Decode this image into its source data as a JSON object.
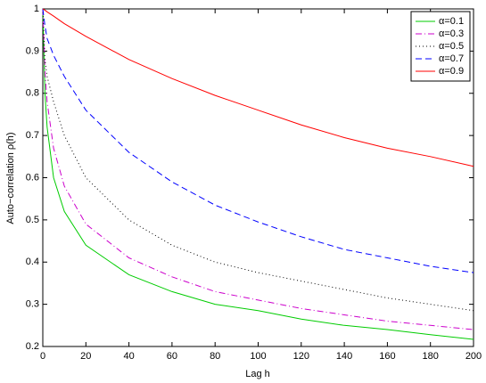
{
  "chart_data": {
    "type": "line",
    "xlabel": "Lag h",
    "ylabel": "Auto−correlation ρ(h)",
    "x": [
      0,
      1,
      2,
      5,
      10,
      20,
      40,
      60,
      80,
      100,
      120,
      140,
      160,
      180,
      200
    ],
    "series": [
      {
        "name": "α=0.1",
        "color": "#00cc00",
        "dash": "solid",
        "values": [
          1,
          0.8,
          0.72,
          0.6,
          0.52,
          0.44,
          0.37,
          0.33,
          0.3,
          0.285,
          0.265,
          0.25,
          0.24,
          0.228,
          0.217
        ]
      },
      {
        "name": "α=0.3",
        "color": "#cc00cc",
        "dash": "dashdot",
        "values": [
          1,
          0.85,
          0.78,
          0.67,
          0.58,
          0.49,
          0.41,
          0.365,
          0.33,
          0.31,
          0.29,
          0.275,
          0.26,
          0.25,
          0.24
        ]
      },
      {
        "name": "α=0.5",
        "color": "#000000",
        "dash": "dotted",
        "values": [
          1,
          0.88,
          0.84,
          0.78,
          0.7,
          0.6,
          0.5,
          0.44,
          0.4,
          0.375,
          0.355,
          0.335,
          0.315,
          0.3,
          0.285
        ]
      },
      {
        "name": "α=0.7",
        "color": "#0000ff",
        "dash": "dashed",
        "values": [
          1,
          0.96,
          0.93,
          0.89,
          0.84,
          0.76,
          0.66,
          0.59,
          0.535,
          0.495,
          0.46,
          0.43,
          0.41,
          0.39,
          0.375
        ]
      },
      {
        "name": "α=0.9",
        "color": "#ff0000",
        "dash": "solid",
        "values": [
          1,
          0.997,
          0.993,
          0.983,
          0.965,
          0.935,
          0.88,
          0.835,
          0.795,
          0.76,
          0.725,
          0.695,
          0.67,
          0.65,
          0.627
        ]
      }
    ],
    "xlim": [
      0,
      200
    ],
    "xticks": [
      0,
      20,
      40,
      60,
      80,
      100,
      120,
      140,
      160,
      180,
      200
    ],
    "ylim": [
      0.2,
      1
    ],
    "yticks": [
      0.2,
      0.3,
      0.4,
      0.5,
      0.6,
      0.7,
      0.8,
      0.9,
      1
    ],
    "grid": false,
    "legend": "upper right"
  }
}
